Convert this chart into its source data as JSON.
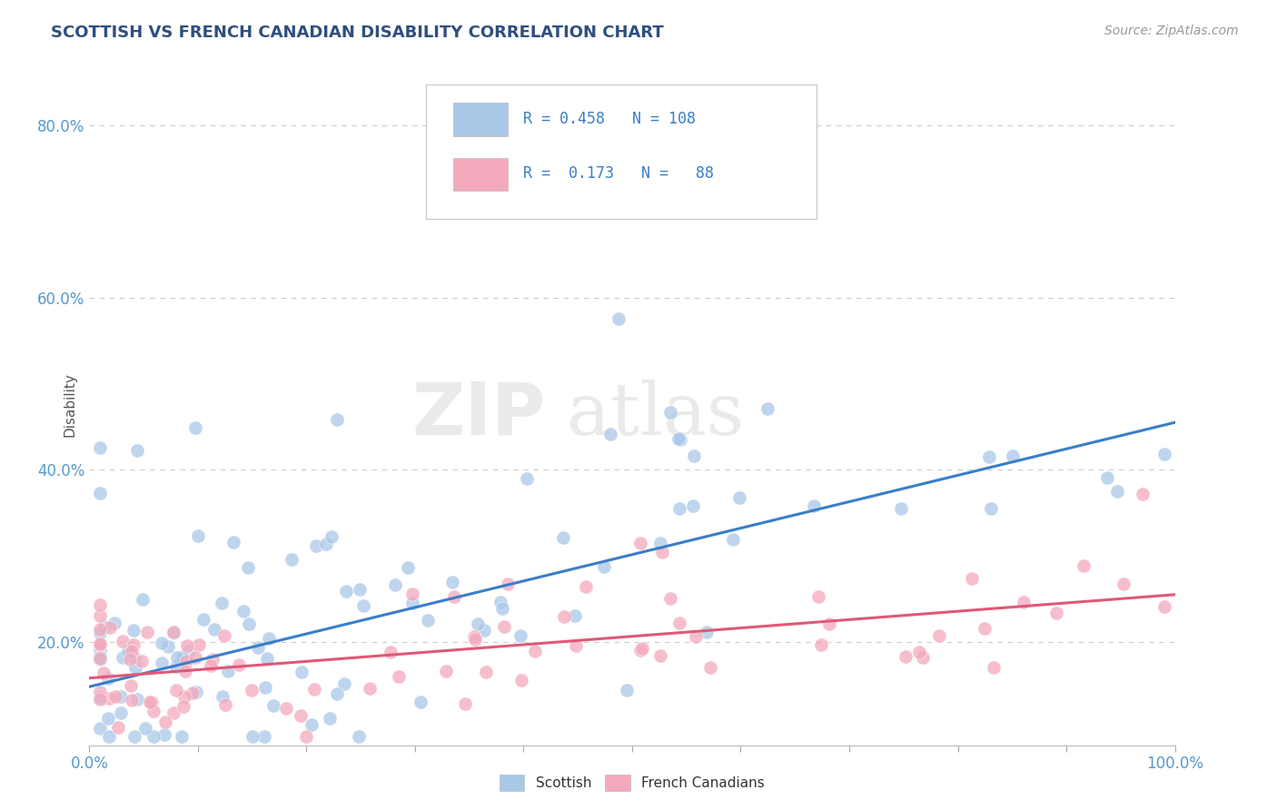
{
  "title": "SCOTTISH VS FRENCH CANADIAN DISABILITY CORRELATION CHART",
  "source": "Source: ZipAtlas.com",
  "ylabel": "Disability",
  "xlim": [
    0.0,
    1.0
  ],
  "ylim": [
    0.08,
    0.88
  ],
  "ytick_labels": [
    "20.0%",
    "40.0%",
    "60.0%",
    "80.0%"
  ],
  "yticks": [
    0.2,
    0.4,
    0.6,
    0.8
  ],
  "R_scottish": 0.458,
  "N_scottish": 108,
  "R_french": 0.173,
  "N_french": 88,
  "scottish_color": "#A8C8E8",
  "french_color": "#F4A8BC",
  "scottish_line_color": "#3A7EC8",
  "french_line_color": "#E05878",
  "background_color": "#FFFFFF",
  "grid_color": "#CCCCCC",
  "title_color": "#2F4F7F",
  "source_color": "#999999",
  "tick_color": "#5599CC",
  "legend_text_color": "#3A7EC8",
  "scottish_trend_start": 0.148,
  "scottish_trend_end": 0.455,
  "french_trend_start": 0.158,
  "french_trend_end": 0.255
}
